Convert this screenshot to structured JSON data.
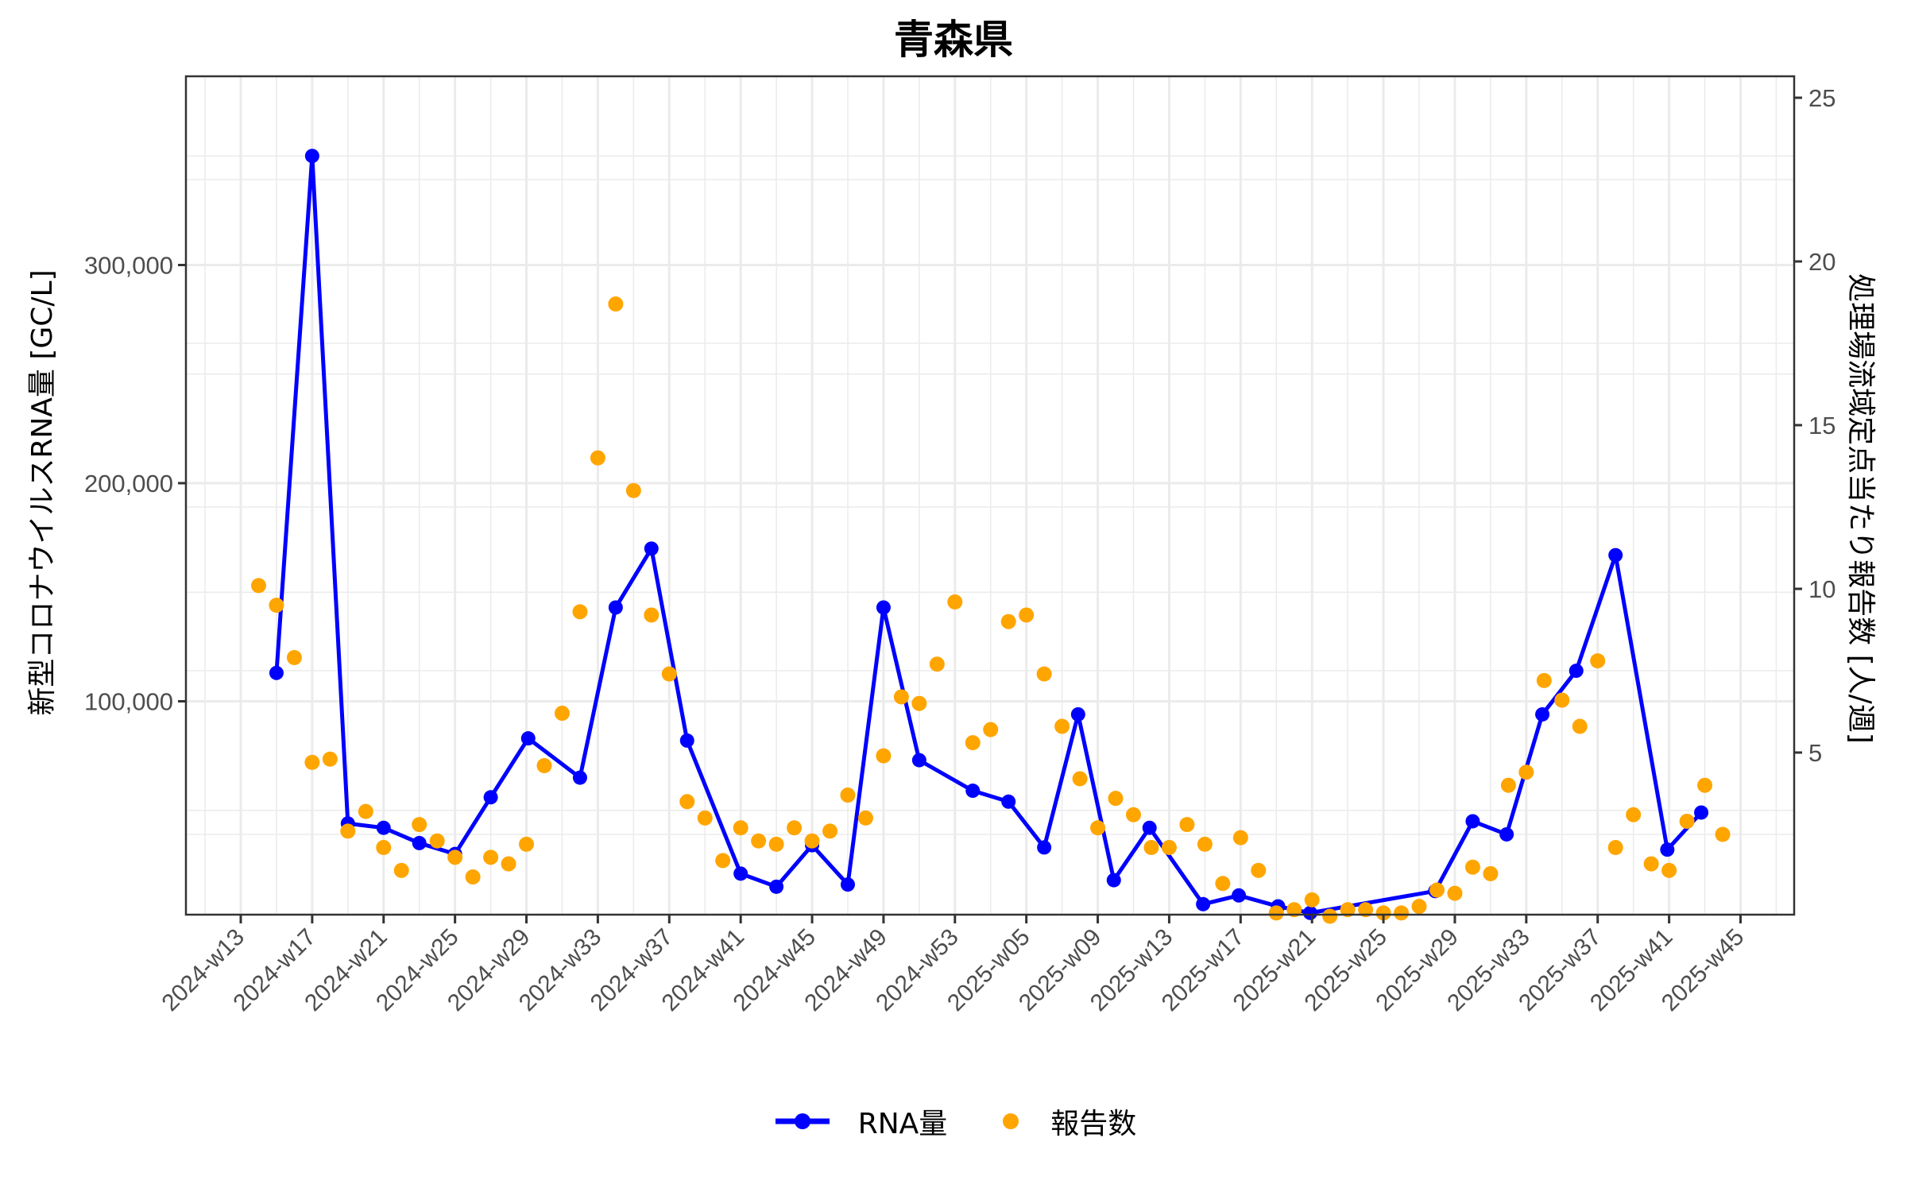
{
  "title": "青森県",
  "legend": {
    "rna_label": "RNA量",
    "reports_label": "報告数"
  },
  "axes": {
    "y_left_label": "新型コロナウイルスRNA量 [GC/L]",
    "y_right_label": "処理場流域定点当たり報告数 [人/週]"
  },
  "colors": {
    "rna": "#0000FF",
    "reports": "#FFA500",
    "grid": "#EBEBEB",
    "axis": "#333333",
    "tick_text": "#4D4D4D"
  },
  "chart_data": {
    "type": "line+scatter (dual axis)",
    "title": "青森県",
    "xlabel": "",
    "ylabel": "新型コロナウイルスRNA量 [GC/L]",
    "y2label": "処理場流域定点当たり報告数 [人/週]",
    "x_tick_labels": [
      "2024-w13",
      "2024-w17",
      "2024-w21",
      "2024-w25",
      "2024-w29",
      "2024-w33",
      "2024-w37",
      "2024-w41",
      "2024-w45",
      "2024-w49",
      "2024-w53",
      "2025-w05",
      "2025-w09",
      "2025-w13",
      "2025-w17",
      "2025-w21",
      "2025-w25",
      "2025-w29",
      "2025-w33",
      "2025-w37",
      "2025-w41",
      "2025-w45"
    ],
    "y_left_ticks": [
      "100,000",
      "200,000",
      "300,000"
    ],
    "y_right_ticks": [
      "5",
      "10",
      "15",
      "20",
      "25"
    ],
    "ylim": [
      0,
      385000
    ],
    "y2lim": [
      0,
      25.5
    ],
    "grid": true,
    "legend_position": "bottom",
    "series": [
      {
        "name": "RNA量",
        "axis": "left",
        "style": "line+points",
        "points": [
          {
            "x": 2.0,
            "y": 113000
          },
          {
            "x": 4.0,
            "y": 350000
          },
          {
            "x": 6.0,
            "y": 44000
          },
          {
            "x": 8.0,
            "y": 42000
          },
          {
            "x": 10.0,
            "y": 35000
          },
          {
            "x": 12.0,
            "y": 30000
          },
          {
            "x": 14.0,
            "y": 56000
          },
          {
            "x": 16.1,
            "y": 83000
          },
          {
            "x": 19.0,
            "y": 65000
          },
          {
            "x": 21.0,
            "y": 143000
          },
          {
            "x": 23.0,
            "y": 170000
          },
          {
            "x": 25.0,
            "y": 82000
          },
          {
            "x": 28.0,
            "y": 21000
          },
          {
            "x": 30.0,
            "y": 15000
          },
          {
            "x": 32.0,
            "y": 34000
          },
          {
            "x": 34.0,
            "y": 16000
          },
          {
            "x": 36.0,
            "y": 143000
          },
          {
            "x": 38.0,
            "y": 73000
          },
          {
            "x": 41.0,
            "y": 59000
          },
          {
            "x": 43.0,
            "y": 54000
          },
          {
            "x": 45.0,
            "y": 33000
          },
          {
            "x": 46.9,
            "y": 94000
          },
          {
            "x": 48.9,
            "y": 18000
          },
          {
            "x": 50.9,
            "y": 42000
          },
          {
            "x": 53.9,
            "y": 7000
          },
          {
            "x": 55.9,
            "y": 11000
          },
          {
            "x": 58.1,
            "y": 6000
          },
          {
            "x": 59.9,
            "y": 3000
          },
          {
            "x": 66.9,
            "y": 13000
          },
          {
            "x": 69.0,
            "y": 45000
          },
          {
            "x": 70.9,
            "y": 39000
          },
          {
            "x": 72.9,
            "y": 94000
          },
          {
            "x": 74.8,
            "y": 114000
          },
          {
            "x": 77.0,
            "y": 167000
          },
          {
            "x": 79.9,
            "y": 32000
          },
          {
            "x": 81.8,
            "y": 49000
          }
        ]
      },
      {
        "name": "報告数",
        "axis": "right",
        "style": "points",
        "points": [
          {
            "x": 1.0,
            "y": 10.1
          },
          {
            "x": 2.0,
            "y": 9.5
          },
          {
            "x": 3.0,
            "y": 7.9
          },
          {
            "x": 4.0,
            "y": 4.7
          },
          {
            "x": 5.0,
            "y": 4.8
          },
          {
            "x": 6.0,
            "y": 2.6
          },
          {
            "x": 7.0,
            "y": 3.2
          },
          {
            "x": 8.0,
            "y": 2.1
          },
          {
            "x": 9.0,
            "y": 1.4
          },
          {
            "x": 10.0,
            "y": 2.8
          },
          {
            "x": 11.0,
            "y": 2.3
          },
          {
            "x": 12.0,
            "y": 1.8
          },
          {
            "x": 13.0,
            "y": 1.2
          },
          {
            "x": 14.0,
            "y": 1.8
          },
          {
            "x": 15.0,
            "y": 1.6
          },
          {
            "x": 16.0,
            "y": 2.2
          },
          {
            "x": 17.0,
            "y": 4.6
          },
          {
            "x": 18.0,
            "y": 6.2
          },
          {
            "x": 19.0,
            "y": 9.3
          },
          {
            "x": 20.0,
            "y": 14.0
          },
          {
            "x": 21.0,
            "y": 18.7
          },
          {
            "x": 22.0,
            "y": 13.0
          },
          {
            "x": 23.0,
            "y": 9.2
          },
          {
            "x": 24.0,
            "y": 7.4
          },
          {
            "x": 25.0,
            "y": 3.5
          },
          {
            "x": 26.0,
            "y": 3.0
          },
          {
            "x": 27.0,
            "y": 1.7
          },
          {
            "x": 28.0,
            "y": 2.7
          },
          {
            "x": 29.0,
            "y": 2.3
          },
          {
            "x": 30.0,
            "y": 2.2
          },
          {
            "x": 31.0,
            "y": 2.7
          },
          {
            "x": 32.0,
            "y": 2.3
          },
          {
            "x": 33.0,
            "y": 2.6
          },
          {
            "x": 34.0,
            "y": 3.7
          },
          {
            "x": 35.0,
            "y": 3.0
          },
          {
            "x": 36.0,
            "y": 4.9
          },
          {
            "x": 37.0,
            "y": 6.7
          },
          {
            "x": 38.0,
            "y": 6.5
          },
          {
            "x": 39.0,
            "y": 7.7
          },
          {
            "x": 40.0,
            "y": 9.6
          },
          {
            "x": 41.0,
            "y": 5.3
          },
          {
            "x": 42.0,
            "y": 5.7
          },
          {
            "x": 43.0,
            "y": 9.0
          },
          {
            "x": 44.0,
            "y": 9.2
          },
          {
            "x": 45.0,
            "y": 7.4
          },
          {
            "x": 46.0,
            "y": 5.8
          },
          {
            "x": 47.0,
            "y": 4.2
          },
          {
            "x": 48.0,
            "y": 2.7
          },
          {
            "x": 49.0,
            "y": 3.6
          },
          {
            "x": 50.0,
            "y": 3.1
          },
          {
            "x": 51.0,
            "y": 2.1
          },
          {
            "x": 52.0,
            "y": 2.1
          },
          {
            "x": 53.0,
            "y": 2.8
          },
          {
            "x": 54.0,
            "y": 2.2
          },
          {
            "x": 55.0,
            "y": 1.0
          },
          {
            "x": 56.0,
            "y": 2.4
          },
          {
            "x": 57.0,
            "y": 1.4
          },
          {
            "x": 58.0,
            "y": 0.1
          },
          {
            "x": 59.0,
            "y": 0.2
          },
          {
            "x": 60.0,
            "y": 0.5
          },
          {
            "x": 61.0,
            "y": 0.0
          },
          {
            "x": 62.0,
            "y": 0.2
          },
          {
            "x": 63.0,
            "y": 0.2
          },
          {
            "x": 64.0,
            "y": 0.1
          },
          {
            "x": 65.0,
            "y": 0.1
          },
          {
            "x": 66.0,
            "y": 0.3
          },
          {
            "x": 67.0,
            "y": 0.8
          },
          {
            "x": 68.0,
            "y": 0.7
          },
          {
            "x": 69.0,
            "y": 1.5
          },
          {
            "x": 70.0,
            "y": 1.3
          },
          {
            "x": 71.0,
            "y": 4.0
          },
          {
            "x": 72.0,
            "y": 4.4
          },
          {
            "x": 73.0,
            "y": 7.2
          },
          {
            "x": 74.0,
            "y": 6.6
          },
          {
            "x": 75.0,
            "y": 5.8
          },
          {
            "x": 76.0,
            "y": 7.8
          },
          {
            "x": 77.0,
            "y": 2.1
          },
          {
            "x": 78.0,
            "y": 3.1
          },
          {
            "x": 79.0,
            "y": 1.6
          },
          {
            "x": 80.0,
            "y": 1.4
          },
          {
            "x": 81.0,
            "y": 2.9
          },
          {
            "x": 82.0,
            "y": 4.0
          },
          {
            "x": 83.0,
            "y": 2.5
          }
        ]
      }
    ],
    "x_note": "x = week index offset from 2024-w13 (each labelled tick is 4 weeks apart)"
  }
}
